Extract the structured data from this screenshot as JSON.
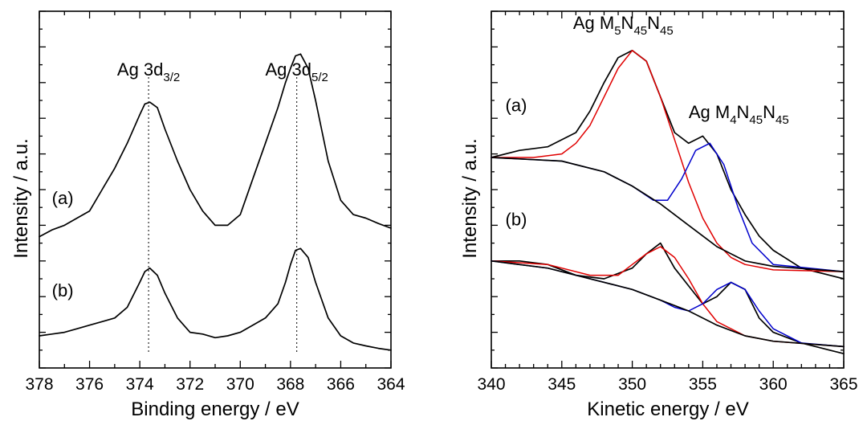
{
  "chart_data": [
    {
      "type": "line",
      "xlabel": "Binding energy / eV",
      "ylabel": "Intensity / a.u.",
      "xlim": [
        378,
        364
      ],
      "x_reversed": true,
      "ylim": [
        0,
        1
      ],
      "xticks": [
        378,
        376,
        374,
        372,
        370,
        368,
        366,
        364
      ],
      "x_minor_step": 1,
      "y_tick_labels": false,
      "grid": false,
      "guides_x": [
        373.65,
        367.75
      ],
      "peaks": [
        {
          "label_main": "Ag 3d",
          "label_sub": "3/2",
          "x": 373.65
        },
        {
          "label_main": "Ag 3d",
          "label_sub": "5/2",
          "x": 367.75
        }
      ],
      "series": [
        {
          "name": "(a)",
          "color": "#000000",
          "x": [
            378,
            377.5,
            377,
            376.5,
            376,
            375.5,
            375,
            374.5,
            374,
            373.8,
            373.6,
            373.3,
            373,
            372.5,
            372,
            371.5,
            371,
            370.5,
            370,
            369.5,
            369,
            368.5,
            368.2,
            368,
            367.8,
            367.6,
            367.3,
            367,
            366.5,
            366,
            365.5,
            365,
            364.5,
            364
          ],
          "y": [
            0.368,
            0.387,
            0.4,
            0.42,
            0.44,
            0.5,
            0.56,
            0.63,
            0.71,
            0.74,
            0.745,
            0.73,
            0.67,
            0.58,
            0.5,
            0.44,
            0.4,
            0.4,
            0.43,
            0.53,
            0.63,
            0.73,
            0.8,
            0.84,
            0.875,
            0.88,
            0.84,
            0.75,
            0.58,
            0.47,
            0.43,
            0.42,
            0.405,
            0.392
          ]
        },
        {
          "name": "(b)",
          "color": "#000000",
          "x": [
            378,
            377.5,
            377,
            376.5,
            376,
            375.5,
            375,
            374.5,
            374,
            373.8,
            373.6,
            373.3,
            373,
            372.5,
            372,
            371.5,
            371,
            370.5,
            370,
            369.5,
            369,
            368.5,
            368.2,
            368,
            367.8,
            367.6,
            367.3,
            367,
            366.5,
            366,
            365.5,
            365,
            364.5,
            364
          ],
          "y": [
            0.09,
            0.095,
            0.1,
            0.11,
            0.12,
            0.13,
            0.14,
            0.17,
            0.24,
            0.27,
            0.28,
            0.26,
            0.21,
            0.14,
            0.1,
            0.095,
            0.085,
            0.09,
            0.1,
            0.12,
            0.14,
            0.18,
            0.24,
            0.29,
            0.33,
            0.335,
            0.31,
            0.24,
            0.14,
            0.09,
            0.07,
            0.062,
            0.055,
            0.05
          ]
        }
      ],
      "series_labels": [
        {
          "text": "(a)",
          "x": 377.5,
          "y": 0.46
        },
        {
          "text": "(b)",
          "x": 377.5,
          "y": 0.2
        }
      ]
    },
    {
      "type": "line",
      "xlabel": "Kinetic energy / eV",
      "ylabel": "Intensity / a.u.",
      "xlim": [
        340,
        365
      ],
      "ylim": [
        0,
        1
      ],
      "xticks": [
        340,
        345,
        350,
        355,
        360,
        365
      ],
      "x_minor_step": 1,
      "y_tick_labels": false,
      "grid": false,
      "annotations": [
        {
          "label_main": "Ag M",
          "sub1": "5",
          "mid1": "N",
          "sub2": "45",
          "mid2": "N",
          "sub3": "45",
          "x": 345.8,
          "y": 0.95
        },
        {
          "label_main": "Ag M",
          "sub1": "4",
          "mid1": "N",
          "sub2": "45",
          "mid2": "N",
          "sub3": "45",
          "x": 354.0,
          "y": 0.7
        }
      ],
      "series_labels": [
        {
          "text": "(a)",
          "x": 341.0,
          "y": 0.72
        },
        {
          "text": "(b)",
          "x": 341.0,
          "y": 0.4
        }
      ],
      "series": [
        {
          "name": "(a)",
          "color": "#000000",
          "x": [
            340,
            342,
            344,
            346,
            347,
            348,
            349,
            350,
            351,
            352,
            353,
            354,
            355,
            356,
            357,
            358,
            359,
            360,
            362,
            364,
            365
          ],
          "y": [
            0.59,
            0.61,
            0.62,
            0.66,
            0.72,
            0.8,
            0.87,
            0.89,
            0.86,
            0.76,
            0.66,
            0.63,
            0.65,
            0.6,
            0.5,
            0.43,
            0.37,
            0.33,
            0.28,
            0.26,
            0.25
          ]
        },
        {
          "name": "(a) M5 fit",
          "color": "#e00000",
          "x": [
            340,
            343,
            345,
            346,
            347,
            348,
            349,
            350,
            351,
            352,
            353,
            354,
            355,
            356,
            357,
            358,
            360,
            365
          ],
          "y": [
            0.59,
            0.59,
            0.6,
            0.63,
            0.68,
            0.76,
            0.84,
            0.89,
            0.86,
            0.76,
            0.64,
            0.52,
            0.42,
            0.35,
            0.31,
            0.29,
            0.275,
            0.27
          ]
        },
        {
          "name": "(a) M4 fit",
          "color": "#0000cc",
          "x": [
            340,
            345,
            348,
            350,
            351.5,
            352.5,
            353.5,
            354.5,
            355.5,
            356.5,
            357.5,
            358.5,
            360,
            365
          ],
          "y": [
            0.59,
            0.58,
            0.55,
            0.51,
            0.47,
            0.47,
            0.53,
            0.61,
            0.63,
            0.57,
            0.45,
            0.35,
            0.29,
            0.27
          ]
        },
        {
          "name": "(a) background",
          "color": "#000000",
          "x": [
            340,
            345,
            348,
            350,
            352,
            354,
            356,
            358,
            360,
            365
          ],
          "y": [
            0.59,
            0.58,
            0.55,
            0.51,
            0.46,
            0.4,
            0.34,
            0.3,
            0.285,
            0.27
          ]
        },
        {
          "name": "(b)",
          "color": "#000000",
          "x": [
            340,
            342,
            344,
            346,
            348,
            350,
            351,
            352,
            353,
            354,
            355,
            356,
            357,
            358,
            359,
            360,
            362,
            364,
            365
          ],
          "y": [
            0.3,
            0.3,
            0.29,
            0.26,
            0.25,
            0.28,
            0.32,
            0.35,
            0.28,
            0.23,
            0.18,
            0.2,
            0.24,
            0.22,
            0.14,
            0.1,
            0.07,
            0.05,
            0.04
          ]
        },
        {
          "name": "(b) M5 fit",
          "color": "#e00000",
          "x": [
            340,
            344,
            347,
            349,
            350,
            351,
            352,
            353,
            354,
            355,
            356,
            358,
            360,
            365
          ],
          "y": [
            0.3,
            0.29,
            0.26,
            0.26,
            0.29,
            0.32,
            0.34,
            0.31,
            0.25,
            0.18,
            0.13,
            0.09,
            0.075,
            0.06
          ]
        },
        {
          "name": "(b) M4 fit",
          "color": "#0000cc",
          "x": [
            340,
            344,
            348,
            350,
            352,
            353,
            354,
            355,
            356,
            357,
            358,
            359,
            360,
            362,
            365
          ],
          "y": [
            0.3,
            0.28,
            0.24,
            0.22,
            0.19,
            0.17,
            0.16,
            0.18,
            0.22,
            0.24,
            0.22,
            0.16,
            0.11,
            0.07,
            0.06
          ]
        },
        {
          "name": "(b) background",
          "color": "#000000",
          "x": [
            340,
            344,
            348,
            350,
            352,
            354,
            356,
            358,
            360,
            365
          ],
          "y": [
            0.3,
            0.28,
            0.24,
            0.22,
            0.19,
            0.16,
            0.12,
            0.09,
            0.075,
            0.06
          ]
        }
      ]
    }
  ]
}
